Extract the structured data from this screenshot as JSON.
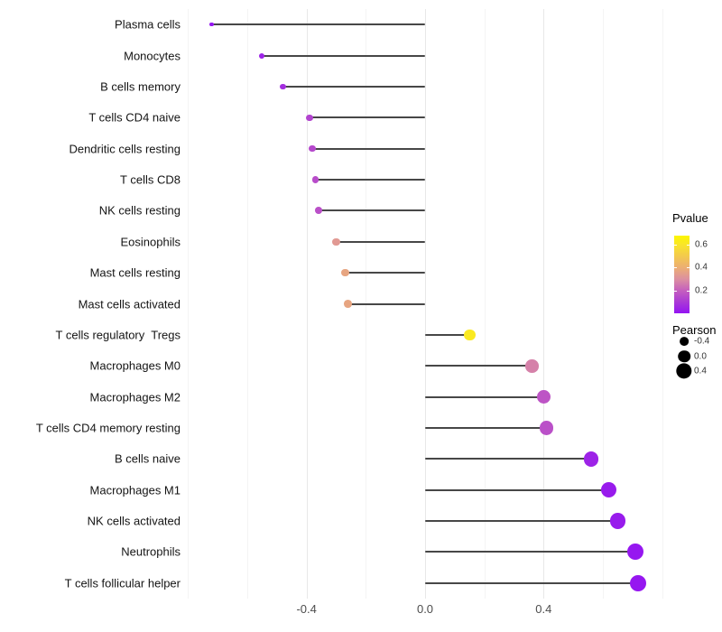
{
  "chart_data": {
    "type": "lollipop",
    "orientation": "horizontal",
    "title": "",
    "xlabel": "",
    "ylabel": "",
    "xlim": [
      -0.81,
      0.81
    ],
    "x_major_gridlines": [
      -0.4,
      0.0,
      0.4
    ],
    "x_minor_gridlines": [
      -0.8,
      -0.6,
      -0.2,
      0.2,
      0.6,
      0.8
    ],
    "x_tick_labels": [
      {
        "value": -0.4,
        "label": "-0.4"
      },
      {
        "value": 0.0,
        "label": "0.0"
      },
      {
        "value": 0.4,
        "label": "0.4"
      }
    ],
    "points": [
      {
        "label": "Plasma cells",
        "pearson": -0.72,
        "pvalue": 0.005
      },
      {
        "label": "Monocytes",
        "pearson": -0.55,
        "pvalue": 0.04
      },
      {
        "label": "B cells memory",
        "pearson": -0.48,
        "pvalue": 0.07
      },
      {
        "label": "T cells CD4 naive",
        "pearson": -0.39,
        "pvalue": 0.13
      },
      {
        "label": "Dendritic cells resting",
        "pearson": -0.38,
        "pvalue": 0.14
      },
      {
        "label": "T cells CD8",
        "pearson": -0.37,
        "pvalue": 0.15
      },
      {
        "label": "NK cells resting",
        "pearson": -0.36,
        "pvalue": 0.16
      },
      {
        "label": "Eosinophils",
        "pearson": -0.3,
        "pvalue": 0.33
      },
      {
        "label": "Mast cells resting",
        "pearson": -0.27,
        "pvalue": 0.37
      },
      {
        "label": "Mast cells activated",
        "pearson": -0.26,
        "pvalue": 0.37
      },
      {
        "label": "T cells regulatory  Tregs",
        "pearson": 0.15,
        "pvalue": 0.62
      },
      {
        "label": "Macrophages M0",
        "pearson": 0.36,
        "pvalue": 0.27
      },
      {
        "label": "Macrophages M2",
        "pearson": 0.4,
        "pvalue": 0.17
      },
      {
        "label": "T cells CD4 memory resting",
        "pearson": 0.41,
        "pvalue": 0.16
      },
      {
        "label": "B cells naive",
        "pearson": 0.56,
        "pvalue": 0.04
      },
      {
        "label": "Macrophages M1",
        "pearson": 0.62,
        "pvalue": 0.02
      },
      {
        "label": "NK cells activated",
        "pearson": 0.65,
        "pvalue": 0.02
      },
      {
        "label": "Neutrophils",
        "pearson": 0.71,
        "pvalue": 0.008
      },
      {
        "label": "T cells follicular helper",
        "pearson": 0.72,
        "pvalue": 0.008
      }
    ],
    "legend_pvalue": {
      "title": "Pvalue",
      "tick_labels": [
        "0.6",
        "0.4",
        "0.2"
      ],
      "tick_values": [
        0.6,
        0.4,
        0.2
      ],
      "range": [
        0.0,
        0.68
      ],
      "gradient_stops": [
        {
          "p": 0.0,
          "color": "#9414f2"
        },
        {
          "p": 0.1,
          "color": "#aa39d6"
        },
        {
          "p": 0.2,
          "color": "#c55fbe"
        },
        {
          "p": 0.3,
          "color": "#dc90a0"
        },
        {
          "p": 0.4,
          "color": "#ecae74"
        },
        {
          "p": 0.5,
          "color": "#f3c94e"
        },
        {
          "p": 0.6,
          "color": "#f9e52a"
        },
        {
          "p": 0.68,
          "color": "#fdf600"
        }
      ]
    },
    "legend_pearson": {
      "title": "Pearson",
      "items": [
        {
          "label": "-0.4",
          "value": -0.4
        },
        {
          "label": "0.0",
          "value": 0.0
        },
        {
          "label": "0.4",
          "value": 0.4
        }
      ],
      "dot_color": "#000000"
    },
    "style": {
      "stem_color": "#474747",
      "major_grid_color": "#e8e8e8",
      "minor_grid_color": "#f4f4f4",
      "background": "#ffffff",
      "axis_text_color": "#4d4d4d",
      "label_text_color": "#141414"
    }
  }
}
